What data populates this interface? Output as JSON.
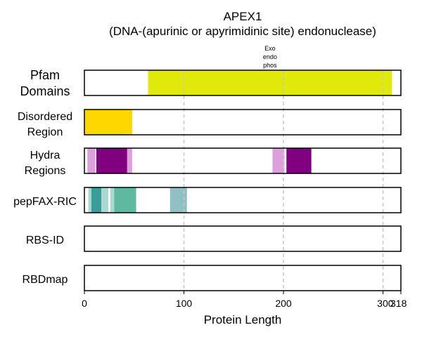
{
  "chart_data": {
    "type": "bar",
    "title": "APEX1",
    "subtitle": "(DNA-(apurinic or apyrimidinic site) endonuclease)",
    "xlabel": "Protein Length",
    "xlim": [
      0,
      318
    ],
    "xticks": [
      0,
      100,
      200,
      300,
      318
    ],
    "grid": "vertical dashed",
    "tracks": [
      {
        "name": "Pfam Domains",
        "segments": [
          {
            "start": 64,
            "end": 309,
            "color": "#e0ea0a",
            "label": "Exo endo phos",
            "label_lines": [
              "Exo",
              "endo",
              "phos"
            ]
          }
        ]
      },
      {
        "name": "Disordered Region",
        "segments": [
          {
            "start": 0,
            "end": 48,
            "color": "#ffd700"
          }
        ]
      },
      {
        "name": "Hydra Regions",
        "segments": [
          {
            "start": 3,
            "end": 11,
            "color": "#dda0dd"
          },
          {
            "start": 11,
            "end": 12,
            "color": "#ffffff"
          },
          {
            "start": 12,
            "end": 43,
            "color": "#800080"
          },
          {
            "start": 43,
            "end": 48,
            "color": "#dda0dd"
          },
          {
            "start": 189,
            "end": 201,
            "color": "#dda0dd"
          },
          {
            "start": 201,
            "end": 203,
            "color": "#ffffff"
          },
          {
            "start": 203,
            "end": 228,
            "color": "#800080"
          }
        ]
      },
      {
        "name": "pepFAX-RIC",
        "segments": [
          {
            "start": 4,
            "end": 7,
            "color": "#a8d8d0"
          },
          {
            "start": 7,
            "end": 17,
            "color": "#3a9e98"
          },
          {
            "start": 17,
            "end": 24,
            "color": "#a8d8d0"
          },
          {
            "start": 26,
            "end": 30,
            "color": "#a8d8d0"
          },
          {
            "start": 30,
            "end": 52,
            "color": "#5fb8a0"
          },
          {
            "start": 86,
            "end": 103,
            "color": "#90bfc4"
          }
        ]
      },
      {
        "name": "RBS-ID",
        "segments": []
      },
      {
        "name": "RBDmap",
        "segments": []
      }
    ]
  }
}
